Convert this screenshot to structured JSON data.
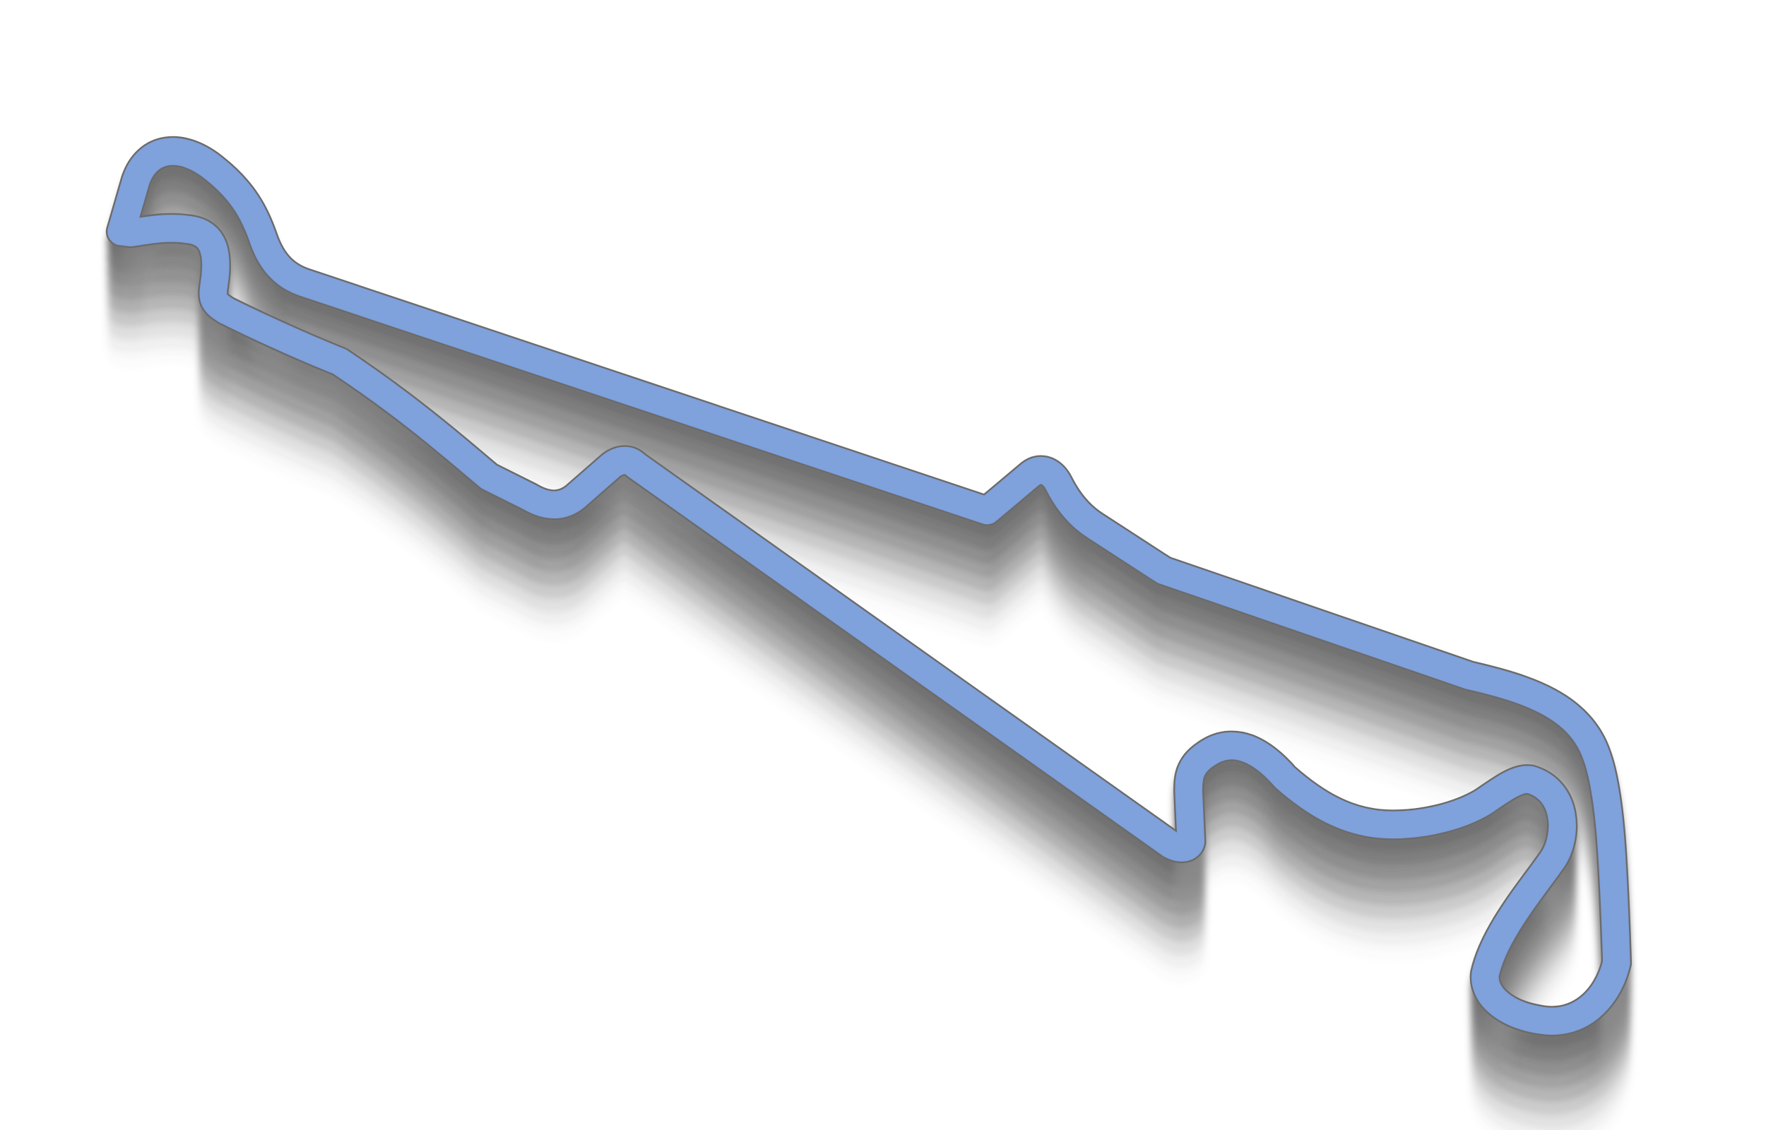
{
  "map": {
    "kind": "race circuit layout",
    "colors": {
      "background": "#ffffff",
      "track_fill": "#7fa1dc",
      "track_outline": "#6b6b6b",
      "shadow": "#4a4a4a"
    }
  }
}
